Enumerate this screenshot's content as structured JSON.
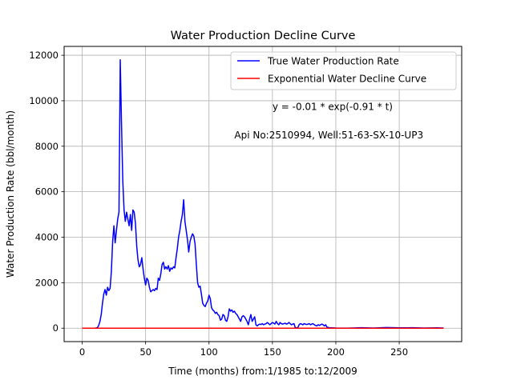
{
  "chart_data": {
    "type": "line",
    "title": "Water Production Decline Curve",
    "xlabel": "Time (months) from:1/1985 to:12/2009",
    "ylabel": "Water Production Rate (bbl/month)",
    "xlim": [
      -14.25,
      299.25
    ],
    "ylim": [
      -590,
      12390
    ],
    "xticks": [
      0,
      50,
      100,
      150,
      200,
      250
    ],
    "yticks": [
      0,
      2000,
      4000,
      6000,
      8000,
      10000,
      12000
    ],
    "grid": true,
    "legend_position": "top-right",
    "annotations": [
      {
        "text": "y = -0.01 * exp(-0.91 * t)",
        "x": 150,
        "y": 9600
      },
      {
        "text": "Api No:2510994, Well:51-63-SX-10-UP3",
        "x": 120,
        "y": 8350
      }
    ],
    "series": [
      {
        "name": "True Water Production Rate",
        "color": "#0000ff",
        "points": [
          [
            0,
            0
          ],
          [
            5,
            0
          ],
          [
            10,
            0
          ],
          [
            12,
            20
          ],
          [
            13,
            120
          ],
          [
            14,
            300
          ],
          [
            15,
            600
          ],
          [
            16,
            1100
          ],
          [
            17,
            1500
          ],
          [
            18,
            1700
          ],
          [
            19,
            1450
          ],
          [
            20,
            1800
          ],
          [
            21,
            1650
          ],
          [
            22,
            1750
          ],
          [
            23,
            2500
          ],
          [
            24,
            3800
          ],
          [
            25,
            4500
          ],
          [
            26,
            3750
          ],
          [
            27,
            4300
          ],
          [
            28,
            4800
          ],
          [
            29,
            5100
          ],
          [
            30,
            11800
          ],
          [
            31,
            9000
          ],
          [
            32,
            6500
          ],
          [
            33,
            5200
          ],
          [
            34,
            4700
          ],
          [
            35,
            5100
          ],
          [
            36,
            4800
          ],
          [
            37,
            4500
          ],
          [
            38,
            5000
          ],
          [
            39,
            4300
          ],
          [
            40,
            5200
          ],
          [
            41,
            5100
          ],
          [
            42,
            4600
          ],
          [
            43,
            3600
          ],
          [
            44,
            3000
          ],
          [
            45,
            2700
          ],
          [
            46,
            2800
          ],
          [
            47,
            3100
          ],
          [
            48,
            2600
          ],
          [
            49,
            2200
          ],
          [
            50,
            1900
          ],
          [
            51,
            2200
          ],
          [
            52,
            2100
          ],
          [
            53,
            1800
          ],
          [
            54,
            1600
          ],
          [
            55,
            1650
          ],
          [
            56,
            1700
          ],
          [
            57,
            1650
          ],
          [
            58,
            1750
          ],
          [
            59,
            1700
          ],
          [
            60,
            2200
          ],
          [
            61,
            2100
          ],
          [
            62,
            2400
          ],
          [
            63,
            2800
          ],
          [
            64,
            2900
          ],
          [
            65,
            2600
          ],
          [
            66,
            2700
          ],
          [
            67,
            2600
          ],
          [
            68,
            2750
          ],
          [
            69,
            2500
          ],
          [
            70,
            2650
          ],
          [
            71,
            2600
          ],
          [
            72,
            2700
          ],
          [
            73,
            2650
          ],
          [
            74,
            3100
          ],
          [
            75,
            3500
          ],
          [
            76,
            4000
          ],
          [
            77,
            4300
          ],
          [
            78,
            4700
          ],
          [
            79,
            5000
          ],
          [
            80,
            5650
          ],
          [
            81,
            4700
          ],
          [
            82,
            4300
          ],
          [
            83,
            3900
          ],
          [
            84,
            3350
          ],
          [
            85,
            3800
          ],
          [
            86,
            4000
          ],
          [
            87,
            4150
          ],
          [
            88,
            4050
          ],
          [
            89,
            3700
          ],
          [
            90,
            2800
          ],
          [
            91,
            2000
          ],
          [
            92,
            1800
          ],
          [
            93,
            1850
          ],
          [
            94,
            1500
          ],
          [
            95,
            1100
          ],
          [
            96,
            1000
          ],
          [
            97,
            950
          ],
          [
            98,
            1100
          ],
          [
            99,
            1200
          ],
          [
            100,
            1450
          ],
          [
            101,
            1300
          ],
          [
            102,
            900
          ],
          [
            103,
            800
          ],
          [
            104,
            750
          ],
          [
            105,
            650
          ],
          [
            106,
            700
          ],
          [
            107,
            600
          ],
          [
            108,
            550
          ],
          [
            109,
            350
          ],
          [
            110,
            400
          ],
          [
            111,
            600
          ],
          [
            112,
            550
          ],
          [
            113,
            350
          ],
          [
            114,
            300
          ],
          [
            115,
            500
          ],
          [
            116,
            850
          ],
          [
            117,
            750
          ],
          [
            118,
            800
          ],
          [
            119,
            700
          ],
          [
            120,
            750
          ],
          [
            121,
            650
          ],
          [
            122,
            600
          ],
          [
            123,
            500
          ],
          [
            124,
            400
          ],
          [
            125,
            300
          ],
          [
            126,
            500
          ],
          [
            127,
            550
          ],
          [
            128,
            500
          ],
          [
            129,
            400
          ],
          [
            130,
            300
          ],
          [
            131,
            150
          ],
          [
            132,
            400
          ],
          [
            133,
            600
          ],
          [
            134,
            300
          ],
          [
            135,
            400
          ],
          [
            136,
            500
          ],
          [
            137,
            150
          ],
          [
            138,
            100
          ],
          [
            139,
            150
          ],
          [
            140,
            180
          ],
          [
            141,
            160
          ],
          [
            142,
            200
          ],
          [
            143,
            150
          ],
          [
            144,
            180
          ],
          [
            145,
            200
          ],
          [
            146,
            250
          ],
          [
            147,
            200
          ],
          [
            148,
            150
          ],
          [
            149,
            200
          ],
          [
            150,
            250
          ],
          [
            151,
            220
          ],
          [
            152,
            180
          ],
          [
            153,
            300
          ],
          [
            154,
            200
          ],
          [
            155,
            150
          ],
          [
            156,
            250
          ],
          [
            157,
            200
          ],
          [
            158,
            180
          ],
          [
            159,
            200
          ],
          [
            160,
            220
          ],
          [
            161,
            180
          ],
          [
            162,
            200
          ],
          [
            163,
            250
          ],
          [
            164,
            200
          ],
          [
            165,
            150
          ],
          [
            166,
            180
          ],
          [
            167,
            200
          ],
          [
            168,
            30
          ],
          [
            169,
            10
          ],
          [
            170,
            20
          ],
          [
            171,
            150
          ],
          [
            172,
            200
          ],
          [
            173,
            180
          ],
          [
            174,
            150
          ],
          [
            175,
            200
          ],
          [
            176,
            180
          ],
          [
            177,
            160
          ],
          [
            178,
            180
          ],
          [
            179,
            200
          ],
          [
            180,
            150
          ],
          [
            181,
            180
          ],
          [
            182,
            200
          ],
          [
            183,
            150
          ],
          [
            184,
            120
          ],
          [
            185,
            100
          ],
          [
            186,
            150
          ],
          [
            187,
            120
          ],
          [
            188,
            150
          ],
          [
            189,
            180
          ],
          [
            190,
            150
          ],
          [
            191,
            100
          ],
          [
            192,
            150
          ],
          [
            193,
            50
          ],
          [
            194,
            30
          ],
          [
            195,
            20
          ],
          [
            200,
            10
          ],
          [
            210,
            5
          ],
          [
            220,
            20
          ],
          [
            230,
            10
          ],
          [
            240,
            30
          ],
          [
            250,
            15
          ],
          [
            260,
            20
          ],
          [
            270,
            10
          ],
          [
            280,
            15
          ],
          [
            285,
            10
          ]
        ]
      },
      {
        "name": "Exponential Water Decline Curve",
        "color": "#ff0000",
        "points": [
          [
            0,
            0
          ],
          [
            285,
            0
          ]
        ]
      }
    ]
  }
}
